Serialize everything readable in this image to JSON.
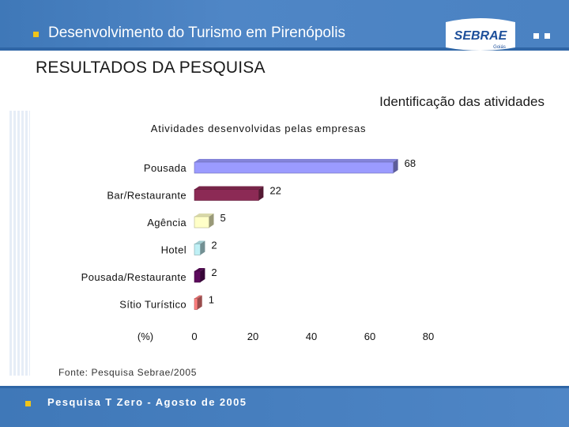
{
  "header": {
    "title": "Desenvolvimento do Turismo em Pirenópolis",
    "logo_text": "SEBRAE",
    "logo_sub": "Goiás"
  },
  "section_title": "RESULTADOS DA PESQUISA",
  "subtitle": "Identificação das atividades",
  "source": "Fonte: Pesquisa Sebrae/2005",
  "footer": {
    "text": "Pesquisa T Zero  -  Agosto de 2005"
  },
  "colors": {
    "header": "#4a82c2",
    "bullet": "#f0c419"
  },
  "chart_data": {
    "type": "bar",
    "orientation": "horizontal",
    "title": "Atividades desenvolvidas pelas empresas",
    "xlabel": "(%)",
    "categories": [
      "Pousada",
      "Bar/Restaurante",
      "Agência",
      "Hotel",
      "Pousada/Restaurante",
      "Sítio Turístico"
    ],
    "values": [
      68,
      22,
      5,
      2,
      2,
      1
    ],
    "colors": [
      "#9b9bff",
      "#8c2a55",
      "#ffffc8",
      "#bff0f5",
      "#5c0a5c",
      "#ff7f7f"
    ],
    "xticks": [
      0,
      20,
      40,
      60,
      80
    ],
    "xlim": [
      0,
      80
    ],
    "style": "3d",
    "grid": false,
    "legend": "none"
  }
}
